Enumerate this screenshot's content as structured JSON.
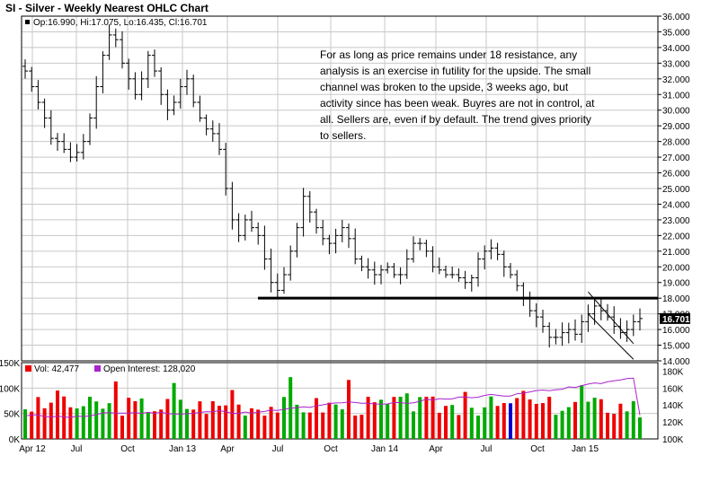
{
  "title": "SI - Silver - Weekly Nearest OHLC Chart",
  "legend": {
    "ohlc": "Op:16.990, Hi:17.075, Lo:16.435, Cl:16.701",
    "volume": "Vol: 42,477",
    "open_interest": "Open Interest: 128,020"
  },
  "last_price_label": "16.701",
  "annotation": "For as long as price remains under 18 resistance, any analysis is an exercise in futility for the upside.  The small channel was broken to the upside, 3 weeks ago, but activity since has been weak.  Buyres are not in control, at all.  Sellers are, even if by default.  The trend gives priority to sellers.",
  "colors": {
    "price_bars": "#000000",
    "volume_up": "#00aa00",
    "volume_down": "#ee0000",
    "volume_neutral": "#0000cc",
    "open_interest": "#aa22cc",
    "resistance_line": "#000000",
    "grid": "#c8c8c8"
  },
  "chart_data": {
    "type": "ohlc",
    "x_tick_labels": [
      "Apr 12",
      "Jul",
      "Oct",
      "Jan 13",
      "Apr",
      "Jul",
      "Oct",
      "Jan 14",
      "Apr",
      "Jul",
      "Oct",
      "Jan 15"
    ],
    "price_axis": {
      "ylim": [
        14,
        36
      ],
      "tick_labels": [
        "14.000",
        "15.000",
        "16.000",
        "17.000",
        "18.000",
        "19.000",
        "20.000",
        "21.000",
        "22.000",
        "23.000",
        "24.000",
        "25.000",
        "26.000",
        "27.000",
        "28.000",
        "29.000",
        "30.000",
        "31.000",
        "32.000",
        "33.000",
        "34.000",
        "35.000",
        "36.000"
      ]
    },
    "volume_axis": {
      "ylim": [
        0,
        150000
      ],
      "tick_labels": [
        "0K",
        "50K",
        "100K",
        "150K"
      ]
    },
    "open_interest_axis": {
      "ylim": [
        100000,
        190000
      ],
      "tick_labels": [
        "100K",
        "120K",
        "140K",
        "160K",
        "180K"
      ]
    },
    "weekly_close_anchors": [
      32.5,
      31.5,
      30.5,
      29.5,
      28.2,
      28.0,
      27.5,
      27.0,
      27.3,
      28.0,
      29.5,
      31.5,
      33.5,
      34.8,
      34.5,
      33.0,
      32.0,
      31.0,
      32.0,
      33.5,
      32.5,
      31.0,
      30.0,
      30.5,
      31.5,
      32.0,
      30.5,
      29.5,
      28.8,
      28.5,
      27.5,
      25.0,
      23.0,
      22.0,
      23.0,
      22.5,
      22.0,
      20.5,
      19.0,
      18.5,
      19.5,
      21.0,
      22.5,
      24.5,
      23.5,
      22.5,
      21.8,
      21.5,
      22.0,
      22.5,
      21.8,
      20.5,
      20.0,
      19.8,
      19.5,
      19.8,
      20.0,
      19.5,
      19.5,
      20.5,
      21.5,
      21.5,
      21.0,
      20.0,
      19.8,
      19.5,
      19.5,
      19.3,
      19.0,
      19.3,
      20.5,
      21.0,
      21.2,
      20.8,
      20.0,
      19.5,
      18.8,
      18.0,
      17.2,
      16.8,
      16.2,
      15.5,
      15.5,
      15.8,
      16.0,
      15.7,
      16.5,
      17.0,
      17.5,
      17.2,
      16.8,
      16.2,
      15.8,
      16.0,
      16.5,
      16.7
    ],
    "resistance_level": 18.0,
    "channel_lines": [
      {
        "from_week": 87,
        "from_price": 18.4,
        "to_week": 94,
        "to_price": 15.1
      },
      {
        "from_week": 87,
        "from_price": 17.0,
        "to_week": 94,
        "to_price": 14.1
      }
    ],
    "last": {
      "open": 16.99,
      "high": 17.075,
      "low": 16.435,
      "close": 16.701,
      "volume": 42477,
      "open_interest": 128020
    }
  }
}
